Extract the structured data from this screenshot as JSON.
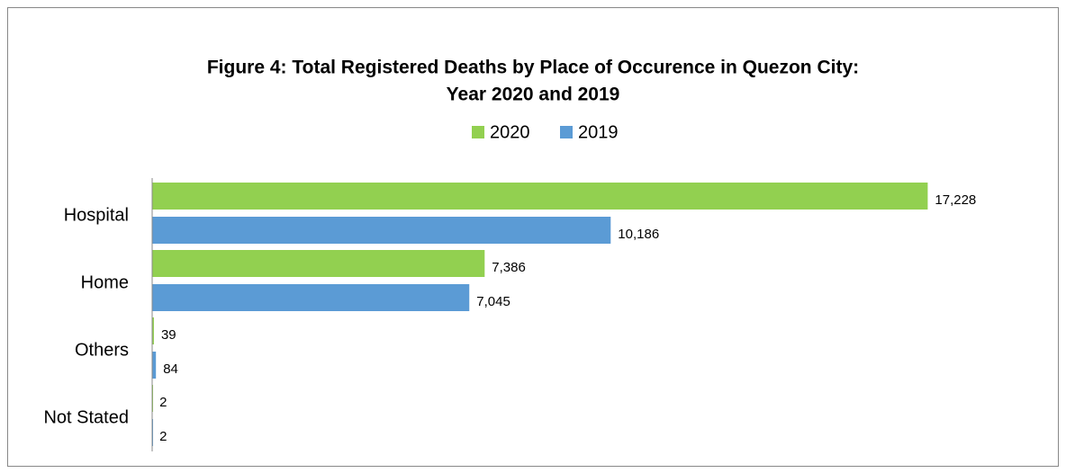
{
  "chart_data": {
    "type": "bar",
    "orientation": "horizontal",
    "title": [
      "Figure 4: Total Registered Deaths by Place of Occurence in Quezon City:",
      "Year 2020 and 2019"
    ],
    "categories": [
      "Hospital",
      "Home",
      "Others",
      "Not Stated"
    ],
    "series": [
      {
        "name": "2020",
        "color": "#92d050",
        "values": [
          17228,
          7386,
          39,
          2
        ],
        "value_labels": [
          "17,228",
          "7,386",
          "39",
          "2"
        ]
      },
      {
        "name": "2019",
        "color": "#5b9bd5",
        "values": [
          10186,
          7045,
          84,
          2
        ],
        "value_labels": [
          "10,186",
          "7,045",
          "84",
          "2"
        ]
      }
    ],
    "xlim": [
      0,
      20000
    ],
    "legend": "top"
  }
}
